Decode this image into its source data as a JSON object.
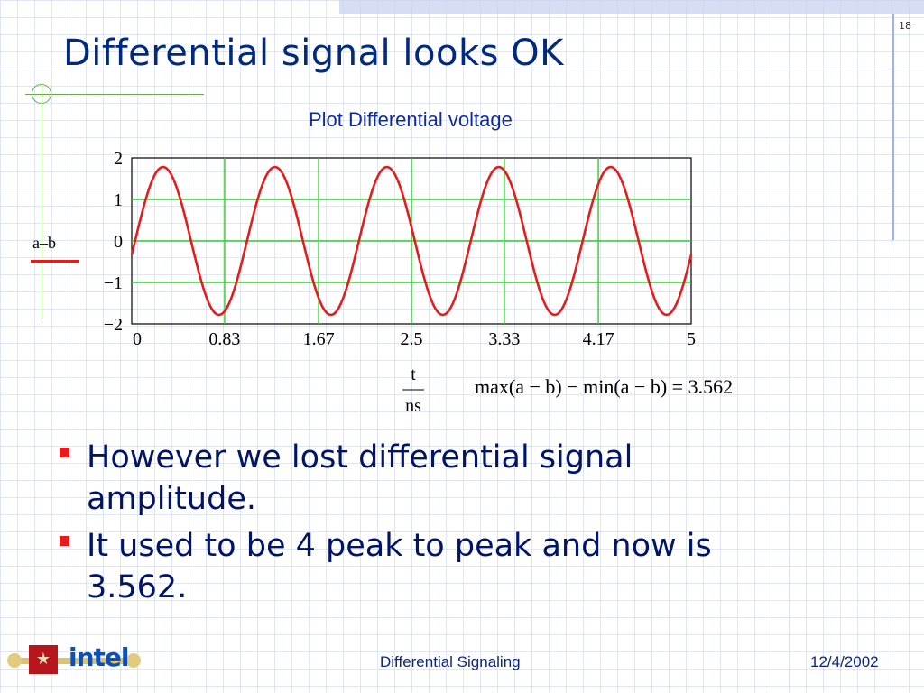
{
  "slide": {
    "number": "18",
    "title": "Differential signal looks OK",
    "legend_label": "a–b",
    "plot_title": "Plot Differential voltage",
    "formula": "max(a − b) − min(a − b) = 3.562",
    "bullets": [
      "However we lost differential signal amplitude.",
      "It used to be 4 peak to peak and now is 3.562."
    ],
    "footer_center": "Differential Signaling",
    "footer_date": "12/4/2002",
    "logo_text": "intel",
    "colors": {
      "title": "#002a82",
      "trace": "#e41c1c",
      "grid": "#2bd12b",
      "bullet": "#e31d1d"
    }
  },
  "chart_data": {
    "type": "line",
    "title": "Plot Differential voltage",
    "xlabel_numerator": "t",
    "xlabel_denominator": "ns",
    "ylabel": "a–b",
    "xlim": [
      0,
      5
    ],
    "ylim": [
      -2,
      2
    ],
    "x_tick_labels": [
      "0",
      "0.83",
      "1.67",
      "2.5",
      "3.33",
      "4.17",
      "5"
    ],
    "x_ticks": [
      0,
      0.83,
      1.67,
      2.5,
      3.33,
      4.17,
      5
    ],
    "y_tick_labels": [
      "2",
      "1",
      "0",
      "−1",
      "−2"
    ],
    "y_ticks": [
      2,
      1,
      0,
      -1,
      -2
    ],
    "grid": true,
    "series": [
      {
        "name": "a–b",
        "amplitude": 1.781,
        "period": 1.0,
        "phase_offset": 0.03,
        "x": [
          0,
          0.25,
          0.5,
          0.75,
          1.0,
          1.25,
          1.5,
          1.75,
          2.0,
          2.25,
          2.5,
          2.75,
          3.0,
          3.25,
          3.5,
          3.75,
          4.0,
          4.25,
          4.5,
          4.75,
          5.0
        ],
        "values": [
          -0.33,
          1.75,
          0.33,
          -1.75,
          -0.33,
          1.75,
          0.33,
          -1.75,
          -0.33,
          1.75,
          0.33,
          -1.75,
          -0.33,
          1.75,
          0.33,
          -1.75,
          -0.33,
          1.75,
          0.33,
          -1.75,
          -0.33
        ]
      }
    ]
  }
}
